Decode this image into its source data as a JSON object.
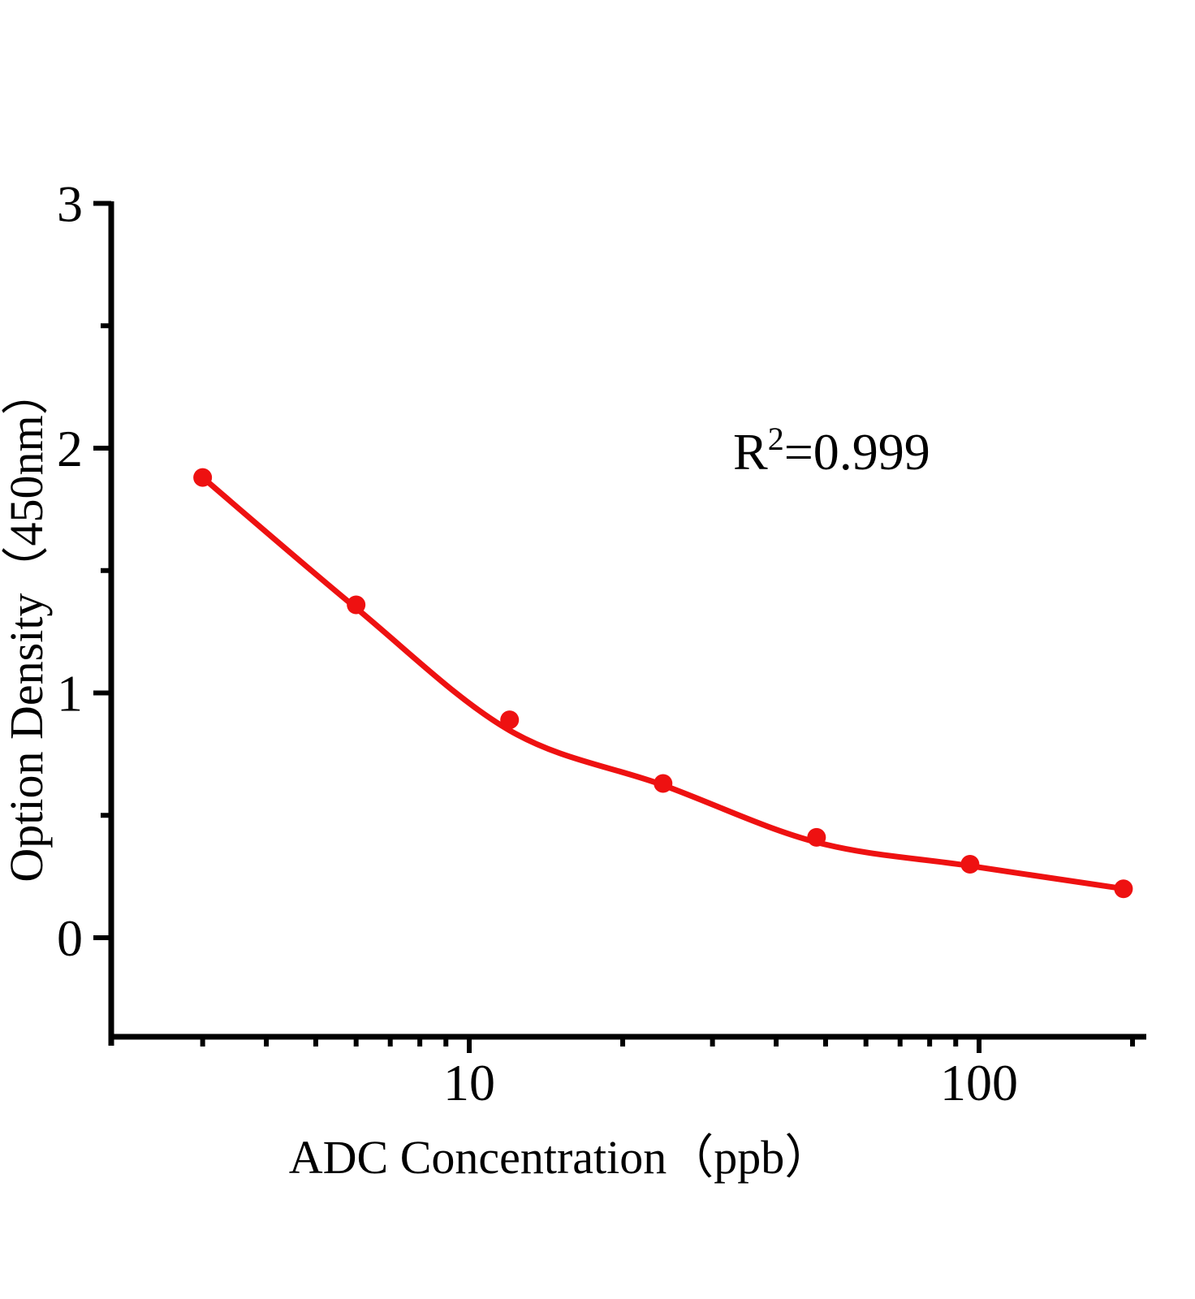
{
  "chart_data": {
    "type": "scatter",
    "subtype": "line-with-markers",
    "title": "",
    "xlabel": "ADC Concentration（ppb）",
    "ylabel": "Option Density（450nm）",
    "x_scale": "log",
    "y_scale": "linear",
    "axis_range_x": [
      2,
      213
    ],
    "axis_range_y": [
      -0.4,
      3
    ],
    "x": [
      3,
      6,
      12,
      24,
      48,
      96,
      192
    ],
    "y": [
      1.88,
      1.36,
      0.89,
      0.63,
      0.41,
      0.3,
      0.2
    ],
    "annotation": {
      "base": "R",
      "sup": "2",
      "rest": "=0.999"
    },
    "x_ticks": {
      "major": [
        10,
        100
      ],
      "major_labels": [
        "10",
        "100"
      ],
      "minor": [
        3,
        4,
        5,
        6,
        7,
        8,
        9,
        20,
        30,
        40,
        50,
        60,
        70,
        80,
        90,
        200
      ]
    },
    "y_ticks": {
      "major": [
        0,
        1,
        2,
        3
      ],
      "major_labels": [
        "0",
        "1",
        "2",
        "3"
      ],
      "minor": [
        0.5,
        1.5,
        2.5
      ]
    },
    "legend": null,
    "grid": false,
    "colors": {
      "curve": "#ee1111",
      "marker": "#ee1111",
      "axis": "#000000",
      "text": "#000000"
    },
    "marker": {
      "shape": "circle",
      "radius_px": 11.5
    }
  }
}
